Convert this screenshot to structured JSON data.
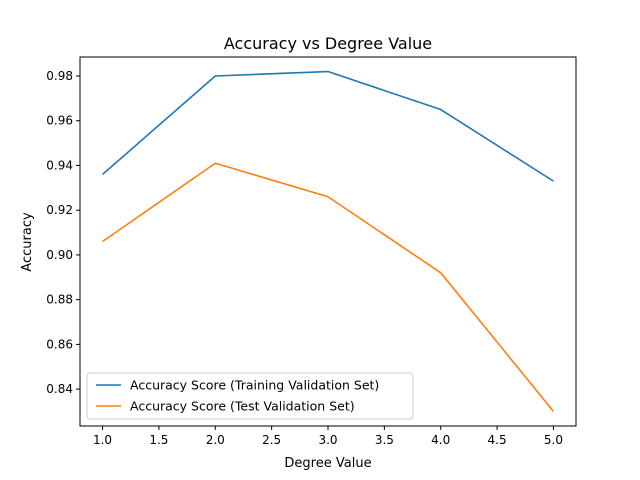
{
  "chart_data": {
    "type": "line",
    "title": "Accuracy vs Degree Value",
    "xlabel": "Degree Value",
    "ylabel": "Accuracy",
    "x": [
      1.0,
      2.0,
      3.0,
      4.0,
      5.0
    ],
    "xlim": [
      0.8,
      5.2
    ],
    "ylim": [
      0.8235,
      0.9885
    ],
    "xticks": [
      "1.0",
      "1.5",
      "2.0",
      "2.5",
      "3.0",
      "3.5",
      "4.0",
      "4.5",
      "5.0"
    ],
    "yticks": [
      "0.84",
      "0.86",
      "0.88",
      "0.90",
      "0.92",
      "0.94",
      "0.96",
      "0.98"
    ],
    "grid": false,
    "legend_position": "lower-left",
    "series": [
      {
        "name": "Accuracy Score (Training Validation Set)",
        "color": "#1f77b4",
        "values": [
          0.936,
          0.98,
          0.982,
          0.965,
          0.933
        ]
      },
      {
        "name": "Accuracy Score (Test Validation Set)",
        "color": "#ff7f0e",
        "values": [
          0.906,
          0.941,
          0.926,
          0.892,
          0.83
        ]
      }
    ]
  }
}
